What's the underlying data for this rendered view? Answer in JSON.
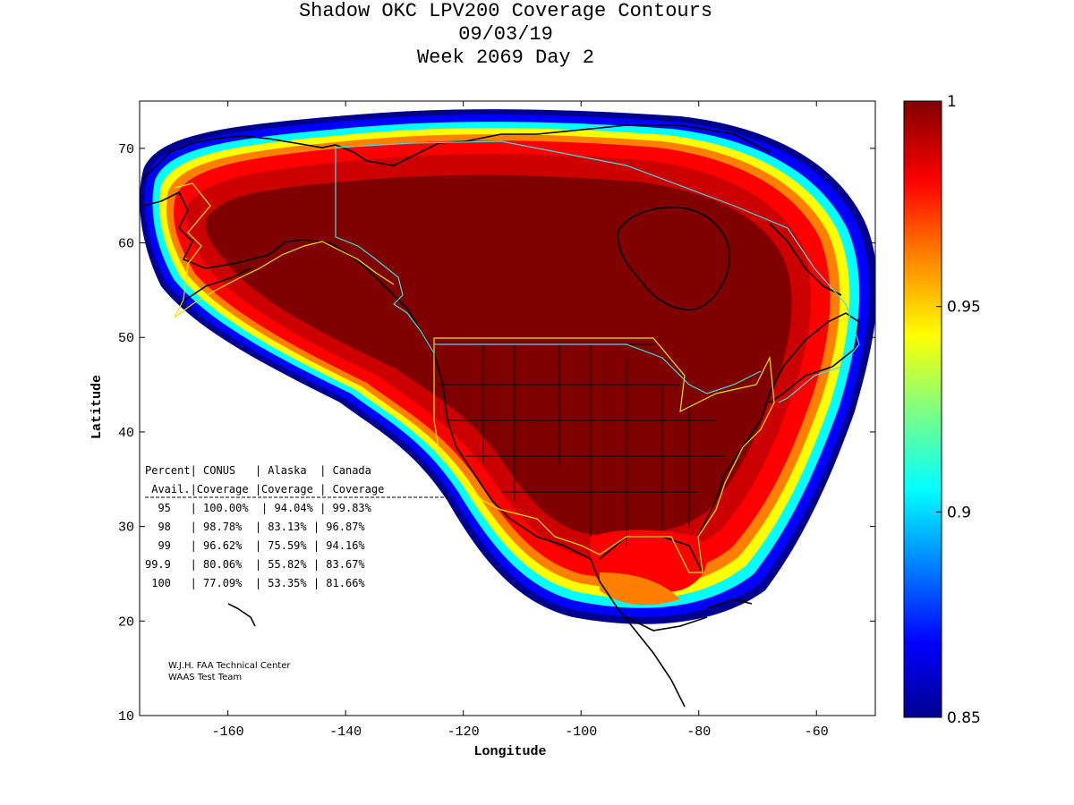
{
  "title": [
    "Shadow OKC LPV200 Coverage Contours",
    "09/03/19",
    "Week 2069 Day 2"
  ],
  "chart_data": {
    "type": "map-contour",
    "xlabel": "Longitude",
    "ylabel": "Latitude",
    "xlim": [
      -175,
      -50
    ],
    "ylim": [
      10,
      75
    ],
    "xticks": [
      -160,
      -140,
      -120,
      -100,
      -80,
      -60
    ],
    "yticks": [
      10,
      20,
      30,
      40,
      50,
      60,
      70
    ],
    "colorbar": {
      "min": 0.85,
      "max": 1.0,
      "ticks": [
        "0.85",
        "0.9",
        "0.95",
        "1"
      ],
      "colormap": "jet",
      "colors": [
        "#00008f",
        "#0000ff",
        "#0080ff",
        "#00ffff",
        "#80ff80",
        "#ffff00",
        "#ff8000",
        "#ff0000",
        "#800000"
      ]
    },
    "coverage_table": {
      "header1": "Percent| CONUS   | Alaska  | Canada",
      "header2": " Avail.|Coverage |Coverage | Coverage",
      "rows": [
        "  95   | 100.00%  | 94.04% | 99.83%",
        "  98   | 98.78%  | 83.13% | 96.87%",
        "  99   | 96.62%  | 75.59% | 94.16%",
        "99.9   | 80.06%  | 55.82% | 83.67%",
        " 100   | 77.09%  | 53.35% | 81.66%"
      ],
      "percent_avail": [
        "95",
        "98",
        "99",
        "99.9",
        "100"
      ],
      "conus": [
        100.0,
        98.78,
        96.62,
        80.06,
        77.09
      ],
      "alaska": [
        94.04,
        83.13,
        75.59,
        55.82,
        53.35
      ],
      "canada": [
        99.83,
        96.87,
        94.16,
        83.67,
        81.66
      ]
    }
  },
  "credits": [
    "W.J.H. FAA Technical Center",
    "WAAS Test Team"
  ]
}
